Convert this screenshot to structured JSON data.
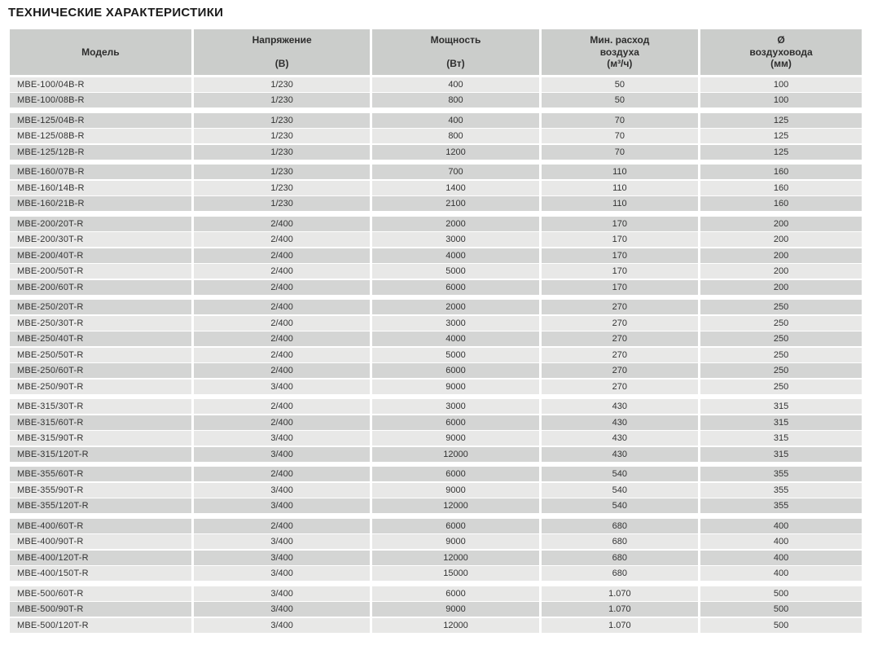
{
  "page": {
    "title": "ТЕХНИЧЕСКИЕ ХАРАКТЕРИСТИКИ"
  },
  "colors": {
    "header_bg": "#cbcdcb",
    "row_light": "#e8e8e7",
    "row_dark": "#d4d5d4",
    "title_text": "#1a1a1a",
    "cell_text": "#333333"
  },
  "table": {
    "columns": [
      {
        "id": "model",
        "label_lines": [
          "Модель"
        ]
      },
      {
        "id": "voltage",
        "label_lines": [
          "Напряжение",
          "",
          "(В)"
        ]
      },
      {
        "id": "power",
        "label_lines": [
          "Мощность",
          "",
          "(Вт)"
        ]
      },
      {
        "id": "airflow",
        "label_lines": [
          "Мин. расход",
          "воздуха",
          "(м³/ч)"
        ]
      },
      {
        "id": "diameter",
        "label_lines": [
          "Ø",
          "воздуховода",
          "(мм)"
        ]
      }
    ],
    "groups": [
      {
        "series": "MBE-100",
        "rows": [
          [
            "MBE-100/04B-R",
            "1/230",
            "400",
            "50",
            "100"
          ],
          [
            "MBE-100/08B-R",
            "1/230",
            "800",
            "50",
            "100"
          ]
        ]
      },
      {
        "series": "MBE-125",
        "rows": [
          [
            "MBE-125/04B-R",
            "1/230",
            "400",
            "70",
            "125"
          ],
          [
            "MBE-125/08B-R",
            "1/230",
            "800",
            "70",
            "125"
          ],
          [
            "MBE-125/12B-R",
            "1/230",
            "1200",
            "70",
            "125"
          ]
        ]
      },
      {
        "series": "MBE-160",
        "rows": [
          [
            "MBE-160/07B-R",
            "1/230",
            "700",
            "110",
            "160"
          ],
          [
            "MBE-160/14B-R",
            "1/230",
            "1400",
            "110",
            "160"
          ],
          [
            "MBE-160/21B-R",
            "1/230",
            "2100",
            "110",
            "160"
          ]
        ]
      },
      {
        "series": "MBE-200",
        "rows": [
          [
            "MBE-200/20T-R",
            "2/400",
            "2000",
            "170",
            "200"
          ],
          [
            "MBE-200/30T-R",
            "2/400",
            "3000",
            "170",
            "200"
          ],
          [
            "MBE-200/40T-R",
            "2/400",
            "4000",
            "170",
            "200"
          ],
          [
            "MBE-200/50T-R",
            "2/400",
            "5000",
            "170",
            "200"
          ],
          [
            "MBE-200/60T-R",
            "2/400",
            "6000",
            "170",
            "200"
          ]
        ]
      },
      {
        "series": "MBE-250",
        "rows": [
          [
            "MBE-250/20T-R",
            "2/400",
            "2000",
            "270",
            "250"
          ],
          [
            "MBE-250/30T-R",
            "2/400",
            "3000",
            "270",
            "250"
          ],
          [
            "MBE-250/40T-R",
            "2/400",
            "4000",
            "270",
            "250"
          ],
          [
            "MBE-250/50T-R",
            "2/400",
            "5000",
            "270",
            "250"
          ],
          [
            "MBE-250/60T-R",
            "2/400",
            "6000",
            "270",
            "250"
          ],
          [
            "MBE-250/90T-R",
            "3/400",
            "9000",
            "270",
            "250"
          ]
        ]
      },
      {
        "series": "MBE-315",
        "rows": [
          [
            "MBE-315/30T-R",
            "2/400",
            "3000",
            "430",
            "315"
          ],
          [
            "MBE-315/60T-R",
            "2/400",
            "6000",
            "430",
            "315"
          ],
          [
            "MBE-315/90T-R",
            "3/400",
            "9000",
            "430",
            "315"
          ],
          [
            "MBE-315/120T-R",
            "3/400",
            "12000",
            "430",
            "315"
          ]
        ]
      },
      {
        "series": "MBE-355",
        "rows": [
          [
            "MBE-355/60T-R",
            "2/400",
            "6000",
            "540",
            "355"
          ],
          [
            "MBE-355/90T-R",
            "3/400",
            "9000",
            "540",
            "355"
          ],
          [
            "MBE-355/120T-R",
            "3/400",
            "12000",
            "540",
            "355"
          ]
        ]
      },
      {
        "series": "MBE-400",
        "rows": [
          [
            "MBE-400/60T-R",
            "2/400",
            "6000",
            "680",
            "400"
          ],
          [
            "MBE-400/90T-R",
            "3/400",
            "9000",
            "680",
            "400"
          ],
          [
            "MBE-400/120T-R",
            "3/400",
            "12000",
            "680",
            "400"
          ],
          [
            "MBE-400/150T-R",
            "3/400",
            "15000",
            "680",
            "400"
          ]
        ]
      },
      {
        "series": "MBE-500",
        "rows": [
          [
            "MBE-500/60T-R",
            "3/400",
            "6000",
            "1.070",
            "500"
          ],
          [
            "MBE-500/90T-R",
            "3/400",
            "9000",
            "1.070",
            "500"
          ],
          [
            "MBE-500/120T-R",
            "3/400",
            "12000",
            "1.070",
            "500"
          ]
        ]
      }
    ]
  }
}
